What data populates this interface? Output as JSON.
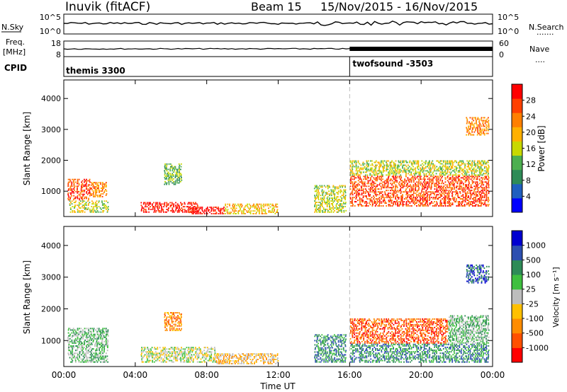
{
  "header": {
    "station": "Inuvik (fitACF)",
    "beam_label": "Beam 15",
    "date_range": "15/Nov/2015 - 16/Nov/2015"
  },
  "colors": {
    "power_scale": [
      "#0000ff",
      "#1f5fbf",
      "#2e8b57",
      "#4caf50",
      "#c8d800",
      "#ffb000",
      "#ff7f00",
      "#ff4000",
      "#ff0000"
    ],
    "velocity_scale": [
      "#0000d0",
      "#2d4fb0",
      "#2e8b57",
      "#3fbf3f",
      "#bdbdbd",
      "#ffc000",
      "#ff8c00",
      "#ff5000",
      "#ff0000"
    ]
  },
  "chart_data": [
    {
      "type": "line",
      "panel": "noise",
      "left_label": "N.Sky",
      "right_label": "N.Search",
      "left_ticks": [
        "10^5",
        "10^0"
      ],
      "right_ticks": [
        "10^5",
        "10^0"
      ]
    },
    {
      "type": "line",
      "panel": "frequency",
      "left_label_line1": "Freq.",
      "left_label_line2": "[MHz]",
      "left_ticks": [
        "18",
        "8"
      ],
      "right_label": "Nave",
      "right_ticks": [
        "60",
        "0"
      ]
    },
    {
      "type": "table",
      "panel": "cpid",
      "label": "CPID",
      "segments": [
        {
          "start_hour": 0,
          "name": "themis 3300"
        },
        {
          "start_hour": 16,
          "name": "twofsound -3503"
        }
      ]
    },
    {
      "type": "heatmap",
      "panel": "power",
      "ylabel": "Slant Range [km]",
      "yticks": [
        1000,
        2000,
        3000,
        4000
      ],
      "ylim": [
        180,
        4600
      ],
      "xlim": [
        0,
        24
      ],
      "colorbar_label": "Power [dB]",
      "colorbar_ticks": [
        "4",
        "8",
        "12",
        "16",
        "20",
        "24",
        "28"
      ],
      "regions": [
        {
          "t0": 0.2,
          "t1": 1.5,
          "r0": 700,
          "r1": 1400,
          "level": 7
        },
        {
          "t0": 0.3,
          "t1": 2.5,
          "r0": 300,
          "r1": 700,
          "level": 4
        },
        {
          "t0": 1.5,
          "t1": 2.4,
          "r0": 800,
          "r1": 1300,
          "level": 6
        },
        {
          "t0": 4.3,
          "t1": 7.5,
          "r0": 300,
          "r1": 650,
          "level": 8
        },
        {
          "t0": 5.6,
          "t1": 6.6,
          "r0": 1200,
          "r1": 1900,
          "level": 3
        },
        {
          "t0": 7.0,
          "t1": 9.0,
          "r0": 250,
          "r1": 500,
          "level": 8
        },
        {
          "t0": 9.0,
          "t1": 12.0,
          "r0": 250,
          "r1": 600,
          "level": 5
        },
        {
          "t0": 14.0,
          "t1": 15.8,
          "r0": 300,
          "r1": 1200,
          "level": 4
        },
        {
          "t0": 16.0,
          "t1": 23.8,
          "r0": 500,
          "r1": 1500,
          "level": 7
        },
        {
          "t0": 16.0,
          "t1": 23.8,
          "r0": 1500,
          "r1": 2000,
          "level": 4
        },
        {
          "t0": 22.5,
          "t1": 23.8,
          "r0": 2800,
          "r1": 3400,
          "level": 6
        }
      ]
    },
    {
      "type": "heatmap",
      "panel": "velocity",
      "ylabel": "Slant Range [km]",
      "yticks": [
        1000,
        2000,
        3000,
        4000
      ],
      "ylim": [
        180,
        4600
      ],
      "xlim": [
        0,
        24
      ],
      "xlabel": "Time UT",
      "xticks": [
        "00:00",
        "04:00",
        "08:00",
        "12:00",
        "16:00",
        "20:00",
        "00:00"
      ],
      "colorbar_label": "Velocity [m s⁻¹]",
      "colorbar_ticks": [
        "1000",
        "500",
        "100",
        "25",
        "-25",
        "-100",
        "-500",
        "-1000"
      ],
      "regions": [
        {
          "t0": 0.2,
          "t1": 2.5,
          "r0": 300,
          "r1": 1400,
          "level": 5
        },
        {
          "t0": 4.3,
          "t1": 8.5,
          "r0": 300,
          "r1": 800,
          "level": 4
        },
        {
          "t0": 5.6,
          "t1": 6.6,
          "r0": 1300,
          "r1": 1900,
          "level": 2
        },
        {
          "t0": 8.5,
          "t1": 12.0,
          "r0": 250,
          "r1": 600,
          "level": 3
        },
        {
          "t0": 14.0,
          "t1": 15.8,
          "r0": 300,
          "r1": 1200,
          "level": 6
        },
        {
          "t0": 16.0,
          "t1": 21.5,
          "r0": 900,
          "r1": 1700,
          "level": 1
        },
        {
          "t0": 16.0,
          "t1": 23.8,
          "r0": 300,
          "r1": 900,
          "level": 6
        },
        {
          "t0": 21.5,
          "t1": 23.8,
          "r0": 900,
          "r1": 1800,
          "level": 5
        },
        {
          "t0": 22.5,
          "t1": 23.8,
          "r0": 2800,
          "r1": 3400,
          "level": 7
        }
      ]
    }
  ]
}
